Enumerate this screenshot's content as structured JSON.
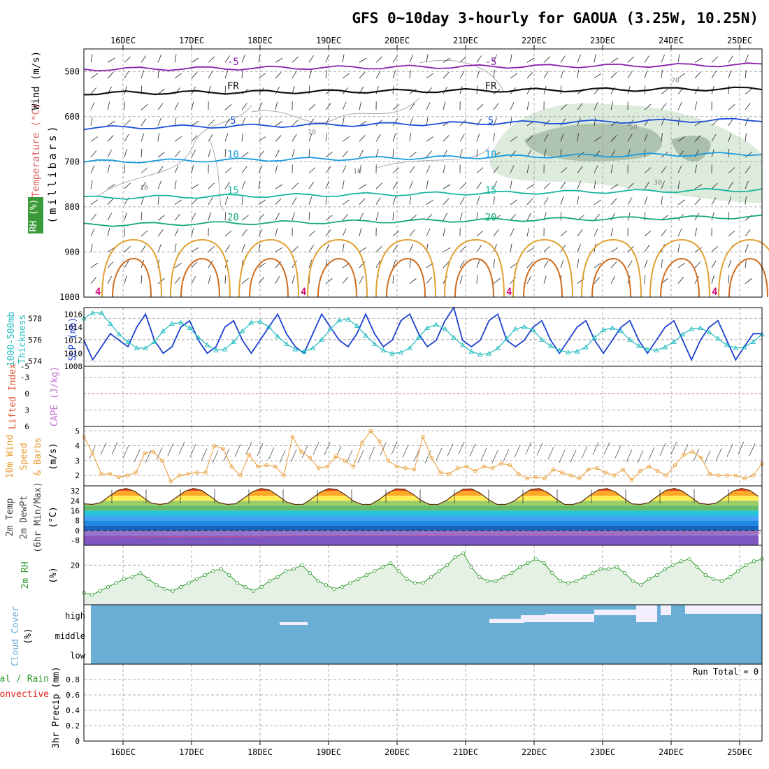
{
  "title": "GFS 0~10day 3-hourly for GAOUA (3.25W, 10.25N)",
  "days": [
    "16DEC",
    "17DEC",
    "18DEC",
    "19DEC",
    "20DEC",
    "21DEC",
    "22DEC",
    "23DEC",
    "24DEC",
    "25DEC"
  ],
  "colors": {
    "purple": "#8a1fb0",
    "black": "#111111",
    "blue": "#1c4fd8",
    "lightblue": "#1b9be0",
    "teal": "#17b5a0",
    "green": "#14a87a",
    "orange": "#e0a030",
    "darkorange": "#d06a1a",
    "magenta": "#d0107a",
    "grid": "#999999",
    "slp": "#1c3fd0",
    "thick": "#22bcc0",
    "wind10": "#e89a30",
    "rh": "#2a9a2a",
    "cloud": "#6aaed6",
    "rain": "#2a9a2a",
    "conv": "#e02020",
    "cape": "#c070d0",
    "lifted": "#e05030",
    "temp_axis": "#e06060",
    "rh_axis": "#3aa03a"
  },
  "chart_data": [
    {
      "type": "contour",
      "panel": "upper_air",
      "ylabel": "(millibars)",
      "side_labels": {
        "wind": "Wind (m/s)",
        "temperature": "Temperature (°C)",
        "rh": "RH (%)"
      },
      "y_ticks": [
        "500",
        "600",
        "700",
        "800",
        "900",
        "1000"
      ],
      "ylim": [
        450,
        1000
      ],
      "isotherms": [
        {
          "label": "-5",
          "level": 495,
          "color": "purple"
        },
        {
          "label": "FR",
          "level": 548,
          "color": "black"
        },
        {
          "label": "5",
          "level": 625,
          "color": "blue"
        },
        {
          "label": "10",
          "level": 700,
          "color": "lightblue"
        },
        {
          "label": "15",
          "level": 780,
          "color": "teal"
        },
        {
          "label": "20",
          "level": 840,
          "color": "green"
        }
      ],
      "rh_labels": [
        "10",
        "10",
        "10",
        "50",
        "70",
        "30"
      ],
      "rh_marker": "4"
    },
    {
      "type": "line",
      "panel": "slp_thickness",
      "series": [
        {
          "name": "SLP (mb)",
          "axis": "right",
          "ticks": [
            "1016",
            "1014",
            "1012",
            "1010",
            "1008"
          ],
          "ylim": [
            1008,
            1017
          ],
          "values": [
            1012,
            1009,
            1011,
            1013,
            1012,
            1011,
            1014,
            1016,
            1012,
            1010,
            1011,
            1014,
            1015,
            1012,
            1010,
            1011,
            1014,
            1015,
            1012,
            1010,
            1012,
            1014,
            1016,
            1013,
            1011,
            1010,
            1013,
            1016,
            1014,
            1012,
            1011,
            1013,
            1016,
            1013,
            1011,
            1012,
            1015,
            1016,
            1013,
            1011,
            1012,
            1015,
            1017,
            1012,
            1011,
            1012,
            1015,
            1016,
            1012,
            1011,
            1012,
            1014,
            1015,
            1012,
            1010,
            1012,
            1014,
            1015,
            1012,
            1010,
            1012,
            1014,
            1015,
            1012,
            1010,
            1012,
            1014,
            1015,
            1012,
            1009,
            1012,
            1014,
            1015,
            1012,
            1009,
            1011,
            1013,
            1013
          ]
        },
        {
          "name": "Thickness (dm)",
          "axis": "left",
          "ticks": [
            "578",
            "576",
            "574"
          ],
          "ylim": [
            573.5,
            579
          ],
          "values": [
            578,
            578.5,
            578.5,
            577.5,
            576.5,
            575.8,
            575.2,
            575.2,
            575.8,
            576.8,
            577.5,
            577.6,
            577.1,
            576.2,
            575.5,
            575.0,
            575.1,
            575.8,
            576.8,
            577.6,
            577.7,
            577.2,
            576.3,
            575.6,
            575.1,
            574.9,
            575.2,
            576.0,
            577.0,
            577.8,
            577.9,
            577.3,
            576.4,
            575.6,
            575.0,
            574.7,
            574.8,
            575.2,
            576.2,
            577.1,
            577.4,
            577.0,
            576.2,
            575.5,
            574.9,
            574.6,
            574.7,
            575.2,
            576.1,
            577.0,
            577.2,
            576.9,
            576.0,
            575.4,
            575.0,
            574.8,
            574.9,
            575.3,
            576.2,
            576.9,
            577.1,
            576.8,
            576.0,
            575.4,
            575.1,
            575.0,
            575.3,
            575.8,
            576.5,
            577.0,
            577.1,
            576.7,
            576.1,
            575.5,
            575.2,
            575.3,
            575.8,
            576.5
          ]
        }
      ]
    },
    {
      "type": "line",
      "panel": "cape_lifted",
      "ylabels": [
        "Lifted Index",
        "CAPE (J/kg)"
      ],
      "y_ticks": [
        "-5",
        "-3",
        "0",
        "3",
        "6"
      ],
      "values": []
    },
    {
      "type": "line",
      "panel": "wind10m",
      "ylabel": "(m/s)",
      "side_labels": [
        "10m Wind",
        "Speed",
        "& Barbs"
      ],
      "y_ticks": [
        "5",
        "4",
        "3",
        "2"
      ],
      "ylim": [
        1.3,
        5.3
      ],
      "values": [
        4.6,
        3.5,
        2.1,
        2.1,
        1.9,
        2.0,
        2.2,
        3.5,
        3.6,
        3.0,
        1.6,
        2.0,
        2.1,
        2.2,
        2.2,
        4.0,
        3.8,
        2.6,
        2.0,
        3.4,
        2.6,
        2.7,
        2.6,
        2.0,
        4.6,
        3.6,
        3.2,
        2.5,
        2.6,
        3.3,
        3.0,
        2.6,
        4.2,
        5.0,
        4.3,
        3.0,
        2.6,
        2.5,
        2.4,
        4.6,
        3.2,
        2.2,
        2.1,
        2.5,
        2.6,
        2.3,
        2.6,
        2.5,
        2.8,
        2.7,
        2.1,
        1.8,
        1.9,
        1.8,
        2.4,
        2.2,
        2.0,
        1.8,
        2.4,
        2.5,
        2.2,
        2.0,
        2.4,
        1.7,
        2.3,
        2.6,
        2.3,
        2.0,
        2.7,
        3.4,
        3.6,
        3.2,
        2.1,
        2.0,
        2.0,
        2.0,
        1.8,
        2.0,
        2.8
      ]
    },
    {
      "type": "area",
      "panel": "temperature",
      "ylabel": "(°C)",
      "side_labels": [
        "2m Temp",
        "2m DewPt",
        "(6hr Min/Max)"
      ],
      "y_ticks": [
        "32",
        "24",
        "16",
        "8",
        "0",
        "-8"
      ],
      "ylim": [
        -12,
        36
      ],
      "max_temps": [
        35,
        35,
        35,
        35,
        34,
        34,
        34,
        34,
        35,
        35
      ],
      "min_temps": [
        20,
        20,
        20,
        20,
        20,
        20,
        20,
        20,
        20,
        20
      ],
      "dewpoint": [
        -6,
        -5,
        -5,
        -4,
        -4,
        -3,
        -3,
        -3,
        -2,
        -2
      ]
    },
    {
      "type": "line",
      "panel": "rh2m",
      "ylabel": "(%)",
      "side_labels": [
        "2m RH"
      ],
      "y_ticks": [
        "20"
      ],
      "ylim": [
        0,
        30
      ],
      "values": [
        6,
        5,
        7,
        9,
        11,
        13,
        14,
        16,
        13,
        10,
        8,
        7,
        9,
        11,
        13,
        15,
        17,
        18,
        15,
        11,
        9,
        7,
        9,
        12,
        14,
        17,
        18,
        20,
        16,
        12,
        10,
        8,
        9,
        11,
        13,
        15,
        17,
        19,
        21,
        17,
        13,
        11,
        11,
        14,
        17,
        20,
        24,
        26,
        19,
        14,
        12,
        12,
        14,
        16,
        19,
        21,
        23,
        21,
        16,
        12,
        11,
        12,
        14,
        16,
        18,
        18,
        19,
        16,
        12,
        10,
        13,
        15,
        18,
        20,
        22,
        23,
        19,
        15,
        13,
        12,
        14,
        17,
        20,
        22,
        23
      ]
    },
    {
      "type": "bar",
      "panel": "cloud",
      "ylabel": "(%)",
      "side_labels": [
        "Cloud Cover"
      ],
      "levels": [
        "high",
        "middle",
        "low"
      ]
    },
    {
      "type": "bar",
      "panel": "precip",
      "ylabel": "3hr Precip (mm)",
      "side_labels": [
        "Total / Rain",
        "Convective"
      ],
      "y_ticks": [
        "0.8",
        "0.6",
        "0.4",
        "0.2",
        "0"
      ],
      "ylim": [
        0,
        1.0
      ],
      "run_total_label": "Run Total = 0",
      "values": []
    }
  ]
}
